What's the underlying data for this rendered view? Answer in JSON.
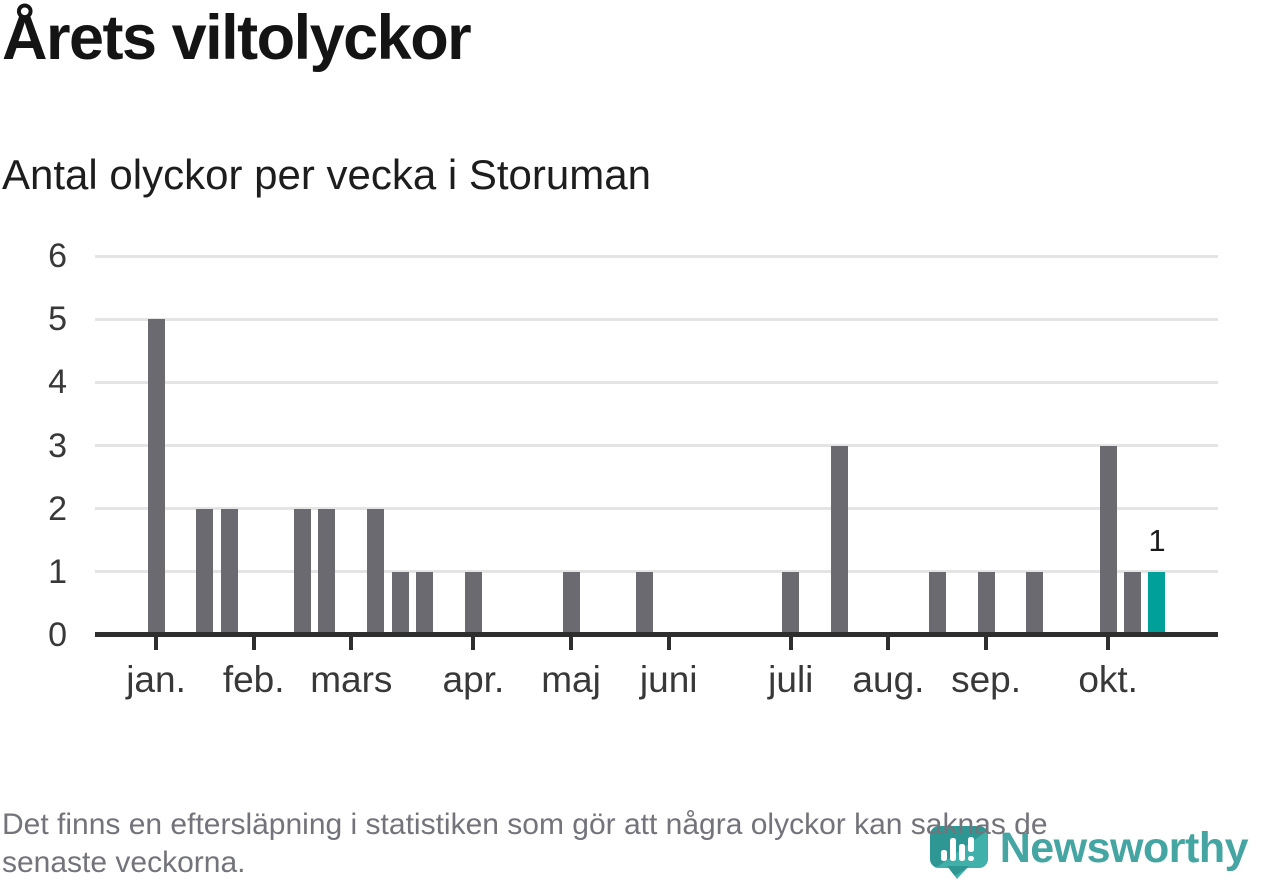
{
  "title": "Årets viltolyckor",
  "subtitle": "Antal olyckor per vecka i Storuman",
  "footer": {
    "lines": [
      "Det finns en eftersläpning i statistiken som gör att några olyckor kan saknas de",
      "senaste veckorna."
    ]
  },
  "logo": {
    "text": "Newsworthy",
    "mark_icon": "newsworthy-bubble-chart-icon",
    "text_color": "#45a5a2",
    "mark_color_dark": "#2f9793",
    "mark_color_light": "#41b0aa"
  },
  "colors": {
    "bar": "#6a6a70",
    "highlight": "#00a09a",
    "axis": "#2e2e2e",
    "gridline": "#e4e4e4",
    "tick_label": "#383838",
    "footer_text": "#73737b"
  },
  "chart_data": {
    "type": "bar",
    "title": "Årets viltolyckor",
    "subtitle": "Antal olyckor per vecka i Storuman",
    "xlabel": "",
    "ylabel": "Antal olyckor per vecka",
    "ylim": [
      0,
      6
    ],
    "yticks": [
      0,
      1,
      2,
      3,
      4,
      5,
      6
    ],
    "grid": "horizontal",
    "legend": "none",
    "num_week_slots": 46,
    "x_unit": "vecka",
    "bars": [
      {
        "slot": 2,
        "value": 5
      },
      {
        "slot": 4,
        "value": 2
      },
      {
        "slot": 5,
        "value": 2
      },
      {
        "slot": 8,
        "value": 2
      },
      {
        "slot": 9,
        "value": 2
      },
      {
        "slot": 11,
        "value": 2
      },
      {
        "slot": 12,
        "value": 1
      },
      {
        "slot": 13,
        "value": 1
      },
      {
        "slot": 15,
        "value": 1
      },
      {
        "slot": 19,
        "value": 1
      },
      {
        "slot": 22,
        "value": 1
      },
      {
        "slot": 28,
        "value": 1
      },
      {
        "slot": 30,
        "value": 3
      },
      {
        "slot": 34,
        "value": 1
      },
      {
        "slot": 36,
        "value": 1
      },
      {
        "slot": 38,
        "value": 1
      },
      {
        "slot": 41,
        "value": 3
      },
      {
        "slot": 42,
        "value": 1
      },
      {
        "slot": 43,
        "value": 1,
        "highlight": true,
        "label": "1"
      }
    ],
    "month_ticks": [
      {
        "label": "jan.",
        "slot": 2
      },
      {
        "label": "feb.",
        "slot": 6
      },
      {
        "label": "mars",
        "slot": 10
      },
      {
        "label": "apr.",
        "slot": 15
      },
      {
        "label": "maj",
        "slot": 19
      },
      {
        "label": "juni",
        "slot": 23
      },
      {
        "label": "juli",
        "slot": 28
      },
      {
        "label": "aug.",
        "slot": 32
      },
      {
        "label": "sep.",
        "slot": 36
      },
      {
        "label": "okt.",
        "slot": 41
      }
    ]
  }
}
